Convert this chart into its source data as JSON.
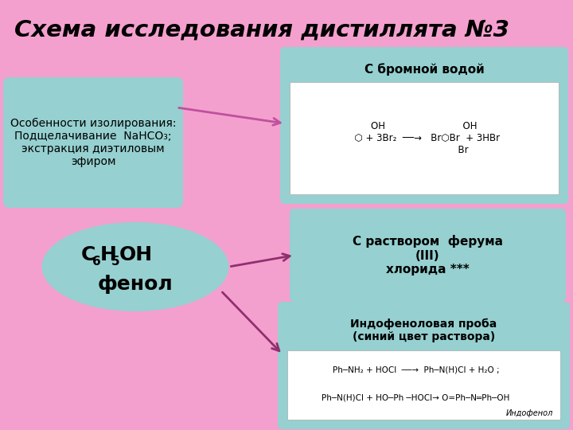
{
  "title": "Схема исследования дистиллята №3",
  "title_fontsize": 21,
  "bg_color": "#F4A0CE",
  "box_color_cyan": "#96D0D0",
  "white_bg": "#FFFFFF",
  "text_color": "#000000",
  "arrow_color_pink": "#C050A0",
  "arrow_color_dark": "#903070",
  "special_box_text": "Особенности изолирования:\nПодщелачивание  NaHCO₃;\nэкстракция диэтиловым\nэфиром",
  "ellipse_text_line2": "фенол",
  "box1_title": "С бромной водой",
  "box2_title": "С раствором  ферума\n(III)\nхлорида ***",
  "box3_title": "Индофеноловая проба\n(синий цвет раствора)",
  "layout": {
    "fig_w": 7.2,
    "fig_h": 5.4,
    "dpi": 100
  }
}
